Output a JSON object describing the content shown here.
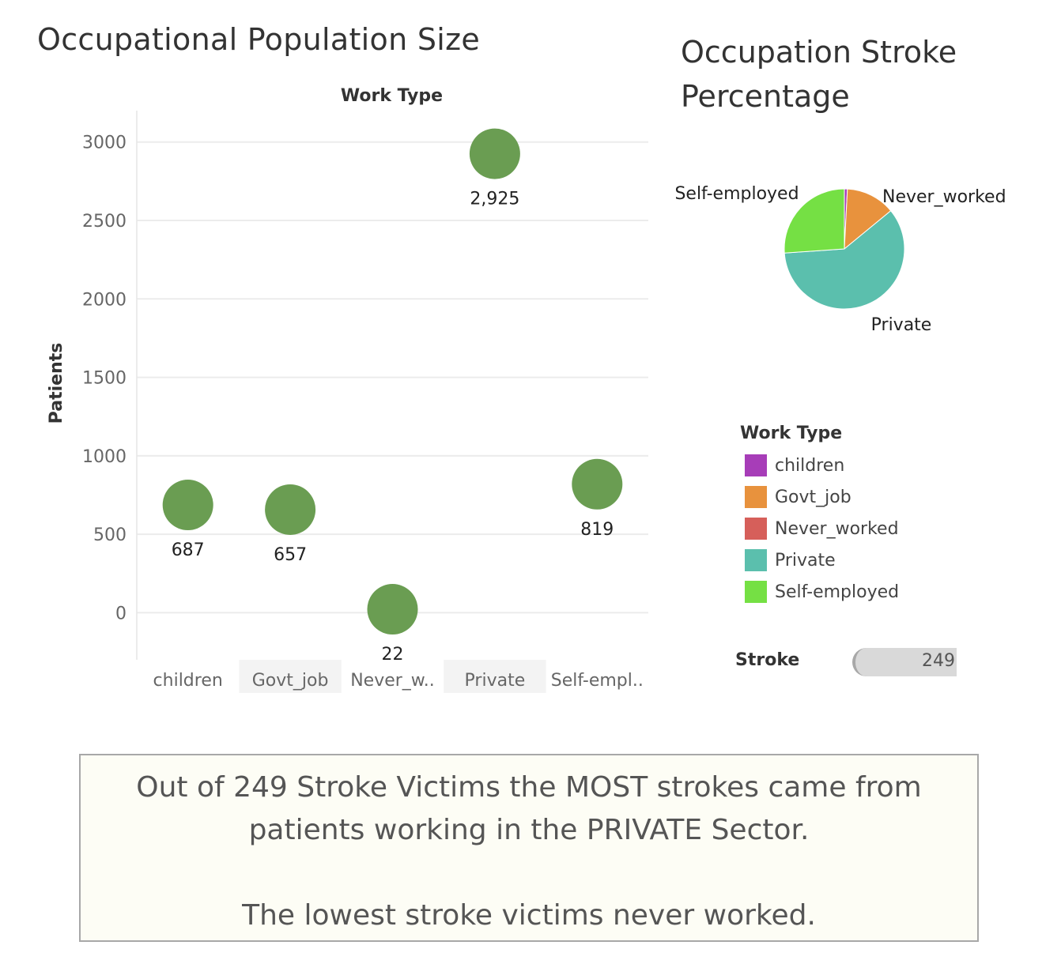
{
  "left_title": "Occupational Population Size",
  "right_title": "Occupation Stroke Percentage",
  "chart_data": [
    {
      "type": "scatter",
      "title": "Occupational Population Size",
      "header": "Work Type",
      "ylabel": "Patients",
      "categories": [
        "children",
        "Govt_job",
        "Never_worked",
        "Private",
        "Self-employed"
      ],
      "category_tick_labels": [
        "children",
        "Govt_job",
        "Never_w..",
        "Private",
        "Self-empl.."
      ],
      "values": [
        687,
        657,
        22,
        2925,
        819
      ],
      "value_labels": [
        "687",
        "657",
        "22",
        "2,925",
        "819"
      ],
      "ylim": [
        -300,
        3200
      ],
      "yticks": [
        0,
        500,
        1000,
        1500,
        2000,
        2500,
        3000
      ],
      "grid": true,
      "marker_color": "#6a9d52"
    },
    {
      "type": "pie",
      "title": "Occupation Stroke Percentage",
      "legend_title": "Work Type",
      "slices": [
        {
          "name": "children",
          "value": 2,
          "color": "#a73db8"
        },
        {
          "name": "Govt_job",
          "value": 33,
          "color": "#e8923d"
        },
        {
          "name": "Never_worked",
          "value": 0,
          "color": "#d65f5a"
        },
        {
          "name": "Private",
          "value": 149,
          "color": "#5bbfad"
        },
        {
          "name": "Self-employed",
          "value": 65,
          "color": "#75e044"
        }
      ],
      "slice_labels": [
        "Self-employed",
        "Never_worked",
        "Private"
      ]
    }
  ],
  "stroke_filter": {
    "label": "Stroke",
    "value": "249"
  },
  "annotation": {
    "line1": "Out of 249 Stroke Victims the MOST strokes came from patients working in the PRIVATE Sector.",
    "line2": "The lowest stroke victims never worked."
  },
  "colors": {
    "marker": "#6a9d52",
    "grid": "#ececec",
    "axis_text": "#666"
  }
}
